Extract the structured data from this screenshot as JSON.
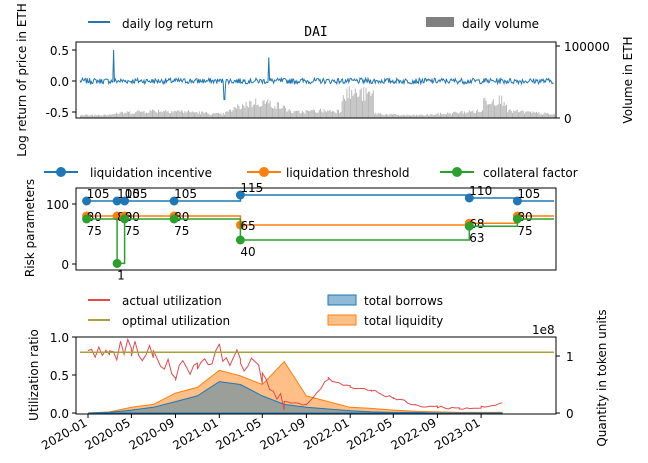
{
  "chart_data": [
    {
      "type": "line",
      "title": "DAI",
      "ylabel": "Log return of price in ETH",
      "ylabel_right": "Volume in ETH",
      "ylim": [
        -0.6,
        0.6
      ],
      "y_ticks": [
        "0.5",
        "0.0",
        "-0.5"
      ],
      "y_right_ticks": [
        "100000",
        "0"
      ],
      "legend": {
        "line": "daily log return",
        "bar": "daily volume"
      },
      "spikes": [
        {
          "date": "2020-03-12",
          "value": 0.5
        },
        {
          "date": "2021-05-19",
          "value": 0.38
        },
        {
          "date": "2021-01-15",
          "value": -0.3
        }
      ],
      "colors": {
        "line": "#1f77b4",
        "bar": "#808080"
      }
    },
    {
      "type": "line",
      "ylabel": "Risk parameters",
      "ylim": [
        0,
        120
      ],
      "y_ticks": [
        "100",
        "0"
      ],
      "series": [
        {
          "name": "liquidation incentive",
          "color": "#1f77b4",
          "points": [
            {
              "date": "2019-12-28",
              "value": 105,
              "label": "105"
            },
            {
              "date": "2020-03-22",
              "value": 105,
              "label": "105"
            },
            {
              "date": "2020-04-12",
              "value": 105,
              "label": "105"
            },
            {
              "date": "2020-08-28",
              "value": 105,
              "label": "105"
            },
            {
              "date": "2021-03-01",
              "value": 115,
              "label": "115"
            },
            {
              "date": "2022-11-29",
              "value": 110,
              "label": "110"
            },
            {
              "date": "2023-04-12",
              "value": 105,
              "label": "105"
            }
          ]
        },
        {
          "name": "liquidation threshold",
          "color": "#ff7f0e",
          "points": [
            {
              "date": "2019-12-28",
              "value": 80,
              "label": "80"
            },
            {
              "date": "2020-03-22",
              "value": 80,
              "label": "80"
            },
            {
              "date": "2020-04-12",
              "value": 80,
              "label": "80"
            },
            {
              "date": "2020-08-28",
              "value": 80,
              "label": "80"
            },
            {
              "date": "2021-03-01",
              "value": 65,
              "label": "65"
            },
            {
              "date": "2022-11-29",
              "value": 68,
              "label": "68"
            },
            {
              "date": "2023-04-12",
              "value": 80,
              "label": "80"
            }
          ]
        },
        {
          "name": "collateral factor",
          "color": "#2ca02c",
          "points": [
            {
              "date": "2019-12-28",
              "value": 75,
              "label": "75"
            },
            {
              "date": "2020-03-22",
              "value": 1,
              "label": "1"
            },
            {
              "date": "2020-04-12",
              "value": 75,
              "label": "75"
            },
            {
              "date": "2020-08-28",
              "value": 75,
              "label": "75"
            },
            {
              "date": "2021-03-01",
              "value": 40,
              "label": "40"
            },
            {
              "date": "2022-11-29",
              "value": 63,
              "label": "63"
            },
            {
              "date": "2023-04-12",
              "value": 75,
              "label": "75"
            }
          ]
        }
      ]
    },
    {
      "type": "area",
      "ylabel": "Utilization ratio",
      "ylabel_right": "Quantity in token units",
      "right_scale_note": "1e8",
      "ylim": [
        0,
        1.0
      ],
      "y_ticks": [
        "1.0",
        "0.5",
        "0.0"
      ],
      "y_right_ticks": [
        "1",
        "0"
      ],
      "x_ticks": [
        "2020-01",
        "2020-05",
        "2020-09",
        "2021-01",
        "2021-05",
        "2021-09",
        "2022-01",
        "2022-05",
        "2022-09",
        "2023-01"
      ],
      "optimal_utilization": 0.8,
      "legend": {
        "actual": "actual utilization",
        "optimal": "optimal utilization",
        "borrows": "total borrows",
        "liquidity": "total liquidity"
      },
      "colors": {
        "actual": "#e34a4a",
        "optimal": "#a8a23b",
        "borrows": "#1f77b4",
        "liquidity": "#ff7f0e"
      },
      "dates": [
        "2020-01",
        "2020-03",
        "2020-05",
        "2020-07",
        "2020-09",
        "2020-11",
        "2021-01",
        "2021-03",
        "2021-05",
        "2021-07",
        "2021-09",
        "2021-11",
        "2022-01",
        "2022-03",
        "2022-05",
        "2022-07",
        "2022-09",
        "2022-11",
        "2023-01",
        "2023-03"
      ],
      "actual_utilization": [
        0.8,
        0.78,
        0.86,
        0.75,
        0.55,
        0.65,
        0.8,
        0.7,
        0.5,
        0.15,
        0.1,
        0.45,
        0.35,
        0.3,
        0.2,
        0.1,
        0.08,
        0.06,
        0.07,
        0.12
      ],
      "total_borrows_1e8": [
        0.0,
        0.01,
        0.05,
        0.1,
        0.2,
        0.3,
        0.55,
        0.5,
        0.3,
        0.15,
        0.1,
        0.07,
        0.04,
        0.02,
        0.01,
        0.01,
        0.0,
        0.0,
        0.0,
        0.0
      ],
      "total_liquidity_1e8": [
        0.0,
        0.02,
        0.1,
        0.15,
        0.35,
        0.45,
        0.75,
        0.65,
        0.5,
        0.9,
        0.3,
        0.2,
        0.1,
        0.08,
        0.05,
        0.03,
        0.02,
        0.01,
        0.01,
        0.01
      ]
    }
  ]
}
